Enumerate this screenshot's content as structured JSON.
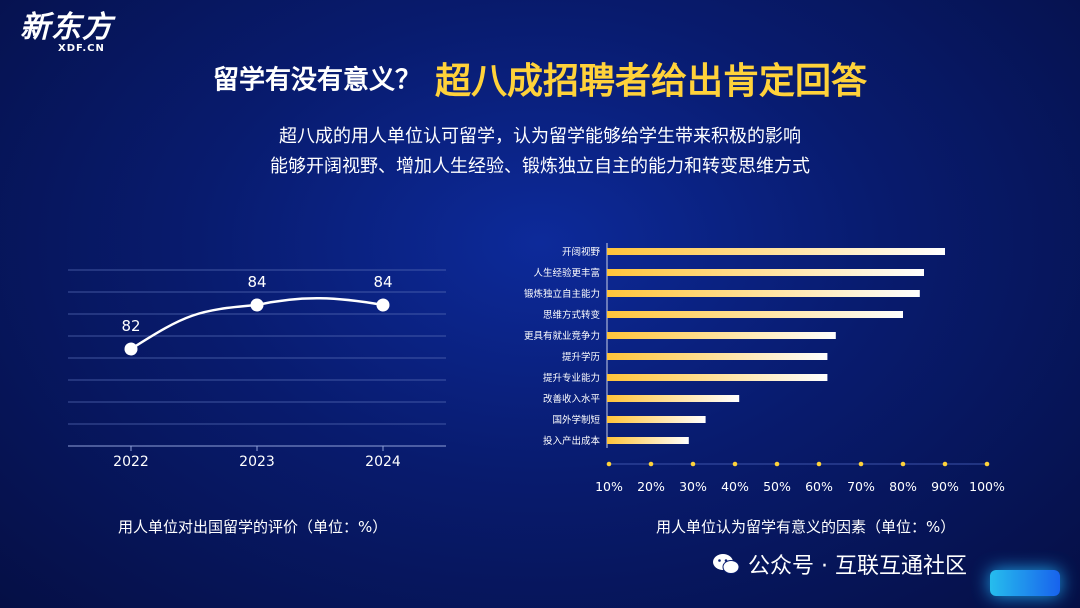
{
  "brand": {
    "logo_text": "新东方",
    "logo_sub": "XDF.CN"
  },
  "title": {
    "white": "留学有没有意义？",
    "highlight": "超八成招聘者给出肯定回答"
  },
  "subtitle": {
    "line1": "超八成的用人单位认可留学，认为留学能够给学生带来积极的影响",
    "line2": "能够开阔视野、增加人生经验、锻炼独立自主的能力和转变思维方式"
  },
  "colors": {
    "accent": "#ffd23a",
    "line": "#ffffff",
    "bar_start": "#ffc43a",
    "bar_end": "#ffffff"
  },
  "chart_data": [
    {
      "type": "line",
      "title": "用人单位对出国留学的评价（单位：%）",
      "x": [
        "2022",
        "2023",
        "2024"
      ],
      "values": [
        82,
        84,
        84
      ],
      "ylim": [
        78.5,
        85.5
      ],
      "grid": true
    },
    {
      "type": "bar",
      "orientation": "horizontal",
      "title": "用人单位认为留学有意义的因素（单位：%）",
      "categories": [
        "开阔视野",
        "人生经验更丰富",
        "锻炼独立自主能力",
        "思维方式转变",
        "更具有就业竞争力",
        "提升学历",
        "提升专业能力",
        "改善收入水平",
        "国外学制短",
        "投入产出成本"
      ],
      "values": [
        90,
        85,
        84,
        80,
        64,
        62,
        62,
        41,
        33,
        29
      ],
      "ticks": [
        "10%",
        "20%",
        "30%",
        "40%",
        "50%",
        "60%",
        "70%",
        "80%",
        "90%",
        "100%"
      ],
      "xlim": [
        10,
        100
      ]
    }
  ],
  "watermark": {
    "text": "公众号 · 互联互通社区",
    "icon": "wechat-icon"
  }
}
